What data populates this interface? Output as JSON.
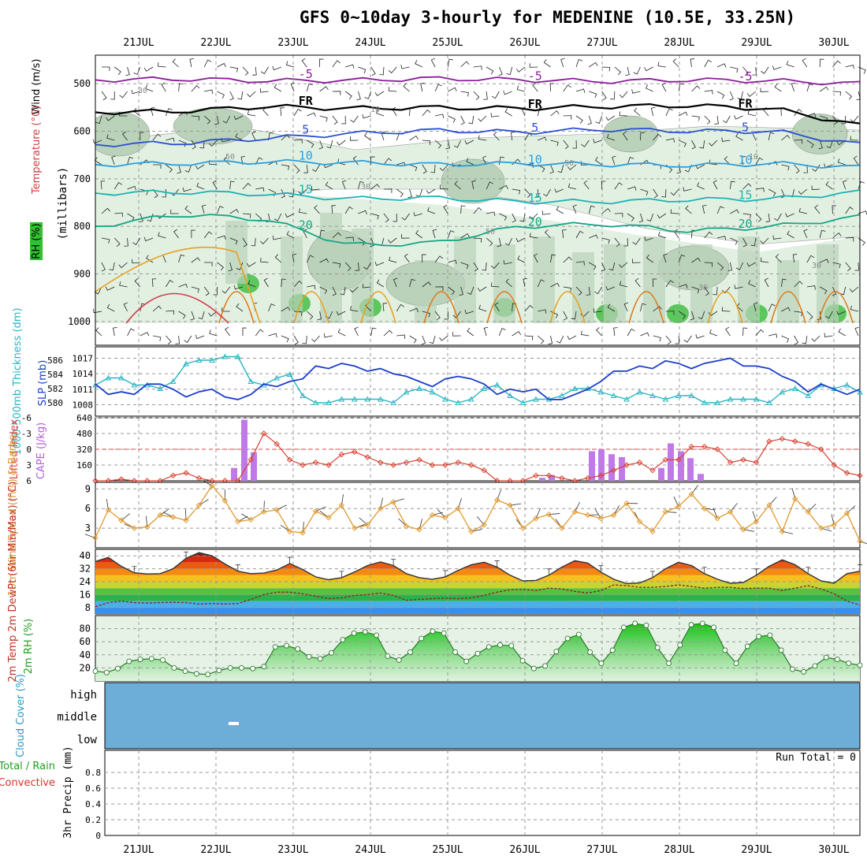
{
  "title": "GFS 0~10day 3-hourly for MEDENINE (10.5E, 33.25N)",
  "dates": [
    "21JUL",
    "22JUL",
    "23JUL",
    "24JUL",
    "25JUL",
    "26JUL",
    "27JUL",
    "28JUL",
    "29JUL",
    "30JUL"
  ],
  "chart_data": [
    {
      "type": "heatmap",
      "panel": "upper-air cross section",
      "ylabel_millibars": "(millibars)",
      "ylabel_wind": "Wind (m/s)",
      "ylabel_temp": "Temperature (°C)",
      "ylabel_rh": "RH (%)",
      "yticks": [
        500,
        600,
        700,
        800,
        900,
        1000
      ],
      "ylim": [
        1050,
        440
      ],
      "isotherms": [
        {
          "label": "-5",
          "color": "#8a1a9a",
          "pressure": [
            492,
            490,
            494,
            493,
            489,
            492,
            495,
            492,
            494,
            500
          ]
        },
        {
          "label": "FR",
          "color": "#000000",
          "pressure": [
            560,
            558,
            548,
            552,
            550,
            552,
            548,
            546,
            553,
            588
          ]
        },
        {
          "label": "5",
          "color": "#2a4fd0",
          "pressure": [
            628,
            625,
            615,
            605,
            598,
            602,
            596,
            600,
            600,
            628
          ]
        },
        {
          "label": "10",
          "color": "#2a9fe0",
          "pressure": [
            670,
            668,
            664,
            666,
            670,
            668,
            670,
            672,
            668,
            676
          ]
        },
        {
          "label": "15",
          "color": "#1ab3b3",
          "pressure": [
            730,
            728,
            732,
            742,
            740,
            748,
            748,
            744,
            742,
            728
          ]
        },
        {
          "label": "20",
          "color": "#16a585",
          "pressure": [
            800,
            775,
            785,
            840,
            835,
            800,
            795,
            810,
            800,
            780
          ]
        }
      ],
      "cloud_text_labels": [
        "30",
        "50",
        "30",
        "50",
        "10",
        "50",
        "30",
        "10",
        "30"
      ]
    },
    {
      "type": "line",
      "panel": "SLP and thickness",
      "ylabel_left": "1000-500mb Thickness (dm)",
      "ylabel_right": "SLP (mb)",
      "series": [
        {
          "name": "SLP (mb)",
          "axis_ticks": [
            1008,
            1011,
            1014,
            1017
          ],
          "color": "#1a3ccc",
          "values": [
            1012.0,
            1010.0,
            1010.5,
            1010.0,
            1012.0,
            1012.0,
            1011.0,
            1009.5,
            1010.5,
            1011.0,
            1009.5,
            1009.0,
            1010.0,
            1012.0,
            1011.5,
            1012.5,
            1013.0,
            1015.5,
            1015.0,
            1016.0,
            1015.5,
            1014.5,
            1015.0,
            1014.0,
            1013.5,
            1012.5,
            1011.5,
            1013.0,
            1013.5,
            1013.0,
            1012.0,
            1010.0,
            1011.0,
            1010.5,
            1011.0,
            1009.0,
            1009.0,
            1010.0,
            1011.0,
            1012.5,
            1014.5,
            1014.5,
            1015.5,
            1015.0,
            1016.5,
            1016.0,
            1015.0,
            1016.0,
            1016.5,
            1017.0,
            1015.5,
            1015.5,
            1015.0,
            1013.5,
            1012.5,
            1010.5,
            1012.0,
            1011.0,
            1010.0,
            1011.0
          ]
        },
        {
          "name": "1000-500mb Thickness (dm)",
          "axis_ticks": [
            580,
            582,
            584,
            586
          ],
          "color": "#2ab6c4",
          "values": [
            582.5,
            583.5,
            583.5,
            582.5,
            582.5,
            582.0,
            583.0,
            585.5,
            586.0,
            586.0,
            586.5,
            586.5,
            583.0,
            582.5,
            583.5,
            584.0,
            581.0,
            580.0,
            580.0,
            580.5,
            580.5,
            580.5,
            580.5,
            580.0,
            581.5,
            582.0,
            581.5,
            580.5,
            580.0,
            580.5,
            582.0,
            582.5,
            581.0,
            580.0,
            580.5,
            580.5,
            581.0,
            582.0,
            582.0,
            581.5,
            581.0,
            580.5,
            581.5,
            581.0,
            580.5,
            581.0,
            581.0,
            580.0,
            580.0,
            580.5,
            580.5,
            580.5,
            580.0,
            581.5,
            582.0,
            581.0,
            582.5,
            582.0,
            582.5,
            581.5
          ]
        }
      ]
    },
    {
      "type": "bar",
      "panel": "Lifted Index and CAPE",
      "ylabel_left": "Lifted Index",
      "ylabel_right": "CAPE (J/kg)",
      "li_ticks": [
        -6,
        -3,
        0,
        3,
        6
      ],
      "cape_ticks": [
        160,
        320,
        480,
        640
      ],
      "cape_values": [
        0,
        0,
        0,
        0,
        0,
        0,
        0,
        0,
        0,
        0,
        0,
        0,
        0,
        0,
        0,
        0,
        0,
        130,
        620,
        290,
        0,
        0,
        0,
        0,
        0,
        0,
        0,
        0,
        0,
        0,
        0,
        0,
        0,
        0,
        0,
        0,
        0,
        0,
        0,
        0,
        0,
        0,
        0,
        0,
        0,
        0,
        0,
        0,
        0,
        0,
        0,
        0,
        0,
        0,
        0,
        0,
        0,
        0,
        0,
        0,
        0,
        0,
        0,
        0,
        0,
        0,
        0,
        0,
        0,
        0,
        0,
        0,
        0,
        0,
        0,
        0,
        0,
        0,
        0,
        0,
        0,
        0,
        0,
        0,
        0,
        0,
        0,
        0,
        0,
        0,
        0,
        0,
        0,
        0,
        0,
        0,
        0,
        0,
        0,
        0,
        0,
        0,
        0,
        30,
        60,
        0,
        0,
        0,
        0,
        0,
        0,
        0,
        0,
        0,
        0,
        0,
        0,
        0,
        0,
        0,
        0,
        0,
        0,
        0,
        0,
        0,
        0,
        0,
        0,
        0,
        0,
        0,
        0,
        0,
        0,
        0,
        0,
        0,
        0,
        0,
        0,
        0,
        0,
        0,
        0,
        0,
        0,
        0,
        0,
        0,
        0,
        0,
        0,
        0,
        0,
        0,
        0,
        0,
        0,
        0,
        0,
        0,
        0,
        0,
        0,
        0,
        0,
        0,
        0,
        0,
        0,
        0,
        0,
        0,
        0,
        0,
        0,
        0,
        0,
        0,
        0,
        0,
        0,
        0,
        0,
        0,
        0,
        0,
        0,
        0,
        0,
        0,
        0,
        0,
        0,
        0,
        0,
        0,
        0,
        0,
        0,
        0,
        0,
        0,
        0,
        0,
        0,
        0,
        0,
        0,
        0,
        0,
        0,
        0,
        0,
        0,
        0,
        0,
        0,
        0,
        0,
        0,
        0,
        0,
        0,
        0,
        0,
        0
      ],
      "li_values": [
        6.5,
        6.0,
        5.7,
        6.5,
        7.0,
        6.5,
        5.0,
        4.5,
        5.5,
        6.5,
        6.0,
        7.5,
        2.0,
        -3.0,
        -1.0,
        2.0,
        3.0,
        2.5,
        3.0,
        1.0,
        0.5,
        1.5,
        2.5,
        3.0,
        2.5,
        2.0,
        3.0,
        3.0,
        2.5,
        3.0,
        4.0,
        6.0,
        6.5,
        6.0,
        5.0,
        5.0,
        5.5,
        6.0,
        5.5,
        5.0,
        4.0,
        3.0,
        2.5,
        4.0,
        2.0,
        2.0,
        -0.5,
        -0.5,
        0.0,
        2.5,
        2.0,
        2.5,
        -1.5,
        -2.0,
        -1.5,
        -1.0,
        0.0,
        3.0,
        4.5,
        5.0
      ]
    },
    {
      "type": "line",
      "panel": "10m wind",
      "ylabel": "10m Wind Speed (m/s) & Barbs",
      "yticks": [
        3,
        6,
        9
      ],
      "ylim": [
        0,
        10
      ],
      "values": [
        1.5,
        5.8,
        4.2,
        3.0,
        3.2,
        5.0,
        4.7,
        4.2,
        6.5,
        9.5,
        7.2,
        4.0,
        4.3,
        5.5,
        5.8,
        2.5,
        2.3,
        5.6,
        4.6,
        6.5,
        3.0,
        3.5,
        6.0,
        7.0,
        3.3,
        2.8,
        5.0,
        4.6,
        6.0,
        2.5,
        3.5,
        7.3,
        6.5,
        3.0,
        4.5,
        5.1,
        3.0,
        5.5,
        5.0,
        4.5,
        5.0,
        6.8,
        4.0,
        2.5,
        5.5,
        6.3,
        8.2,
        6.0,
        4.5,
        5.5,
        2.8,
        4.0,
        6.5,
        2.5,
        7.5,
        5.5,
        3.0,
        3.5,
        5.3,
        1.0
      ]
    },
    {
      "type": "area",
      "panel": "2m temperature and dewpoint",
      "ylabel": "2m Temp 2m DewPt (6hr Min/Max) (°C)",
      "yticks": [
        8,
        16,
        24,
        32,
        40
      ],
      "ylim": [
        4,
        44
      ],
      "temp": [
        36.5,
        39.0,
        33.5,
        29.5,
        28.8,
        29.0,
        32.0,
        38.5,
        42.0,
        40.0,
        35.0,
        30.5,
        29.0,
        29.3,
        31.2,
        35.2,
        31.5,
        27.0,
        25.2,
        26.5,
        30.0,
        34.0,
        36.2,
        34.0,
        29.0,
        26.5,
        25.5,
        27.0,
        31.0,
        34.5,
        36.0,
        33.0,
        28.0,
        24.5,
        24.8,
        28.0,
        33.0,
        37.0,
        35.5,
        30.0,
        25.5,
        22.8,
        23.2,
        26.5,
        32.0,
        36.0,
        34.0,
        29.0,
        25.5,
        23.0,
        23.5,
        28.0,
        33.5,
        37.5,
        34.5,
        29.0,
        24.5,
        23.0,
        29.0,
        30.5
      ],
      "dewpt": [
        8.5,
        11.0,
        12.0,
        11.0,
        10.8,
        11.0,
        11.2,
        11.0,
        10.2,
        10.5,
        10.2,
        10.5,
        13.0,
        16.0,
        17.5,
        17.5,
        16.5,
        15.0,
        13.5,
        14.0,
        15.5,
        16.0,
        17.0,
        15.5,
        12.5,
        13.0,
        13.5,
        13.8,
        13.5,
        14.0,
        15.5,
        17.5,
        19.0,
        19.2,
        18.5,
        20.0,
        19.5,
        18.0,
        17.0,
        18.5,
        22.0,
        21.5,
        20.5,
        20.5,
        21.0,
        22.0,
        21.0,
        20.0,
        20.5,
        20.5,
        19.8,
        20.0,
        20.0,
        18.5,
        20.0,
        21.5,
        19.5,
        16.5,
        12.0,
        9.5
      ]
    },
    {
      "type": "area",
      "panel": "2m relative humidity",
      "ylabel": "2m RH (%)",
      "yticks": [
        20,
        40,
        60,
        80
      ],
      "ylim": [
        0,
        100
      ],
      "values": [
        15,
        13,
        19,
        30,
        33,
        34,
        32,
        20,
        15,
        11,
        10,
        16,
        20,
        20,
        19,
        22,
        52,
        54,
        49,
        37,
        34,
        43,
        63,
        73,
        75,
        70,
        38,
        32,
        44,
        65,
        76,
        73,
        44,
        30,
        42,
        52,
        55,
        54,
        31,
        19,
        23,
        45,
        65,
        71,
        44,
        27,
        47,
        82,
        88,
        85,
        51,
        27,
        55,
        86,
        88,
        82,
        47,
        27,
        53,
        68,
        70,
        47,
        18,
        14,
        23,
        36,
        33,
        27,
        24
      ]
    },
    {
      "type": "area",
      "panel": "cloud cover",
      "ylabel": "Cloud Cover (%)",
      "levels": [
        "high",
        "middle",
        "low"
      ],
      "value_percent": 0
    },
    {
      "type": "bar",
      "panel": "3hr precipitation",
      "ylabel_left": "3hr Precip (mm)",
      "legend": [
        "Total / Rain",
        "Convective"
      ],
      "yticks": [
        0,
        0.2,
        0.4,
        0.6,
        0.8
      ],
      "ylim": [
        0,
        1
      ],
      "run_total_label": "Run Total = 0",
      "values": []
    }
  ],
  "colors": {
    "rh_light": "#e2f0e2",
    "rh_mid": "#b9d2b9",
    "rh_dark": "#94b094",
    "rh_green": "#5cc75c",
    "cloud_blue": "#6daed9",
    "temp_dark": "#7a1a10",
    "temp_red": "#e02a10",
    "temp_orange": "#f58a10",
    "dew_green": "#2bb24b",
    "dew_blue": "#3399ee",
    "rh_fill": "#6cc26c"
  }
}
